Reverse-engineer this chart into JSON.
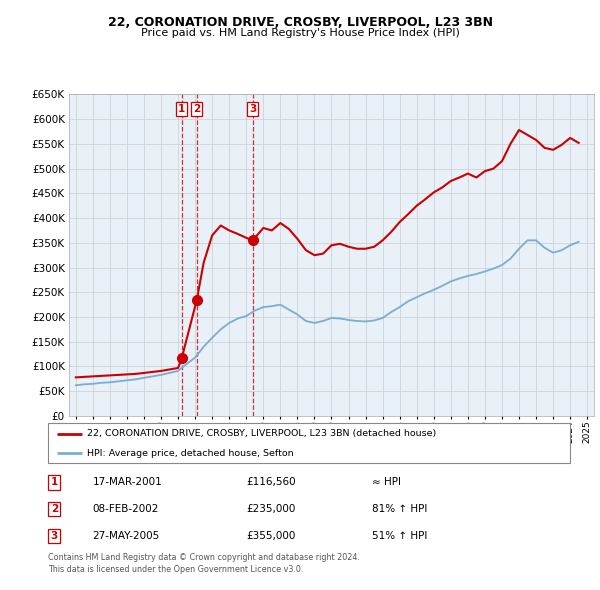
{
  "title": "22, CORONATION DRIVE, CROSBY, LIVERPOOL, L23 3BN",
  "subtitle": "Price paid vs. HM Land Registry's House Price Index (HPI)",
  "transactions": [
    {
      "num": 1,
      "date": "17-MAR-2001",
      "price": 116560,
      "year": 2001.21,
      "label": "≈ HPI"
    },
    {
      "num": 2,
      "date": "08-FEB-2002",
      "price": 235000,
      "year": 2002.1,
      "label": "81% ↑ HPI"
    },
    {
      "num": 3,
      "date": "27-MAY-2005",
      "price": 355000,
      "year": 2005.38,
      "label": "51% ↑ HPI"
    }
  ],
  "legend_line1": "22, CORONATION DRIVE, CROSBY, LIVERPOOL, L23 3BN (detached house)",
  "legend_line2": "HPI: Average price, detached house, Sefton",
  "footer1": "Contains HM Land Registry data © Crown copyright and database right 2024.",
  "footer2": "This data is licensed under the Open Government Licence v3.0.",
  "red_color": "#cc0000",
  "blue_color": "#7aadd4",
  "grid_color": "#cccccc",
  "plot_bg": "#e8f0f8",
  "ylim": [
    0,
    650000
  ],
  "yticks": [
    0,
    50000,
    100000,
    150000,
    200000,
    250000,
    300000,
    350000,
    400000,
    450000,
    500000,
    550000,
    600000,
    650000
  ],
  "hpi_years": [
    1995.0,
    1995.5,
    1996.0,
    1996.5,
    1997.0,
    1997.5,
    1998.0,
    1998.5,
    1999.0,
    1999.5,
    2000.0,
    2000.5,
    2001.0,
    2001.5,
    2002.0,
    2002.5,
    2003.0,
    2003.5,
    2004.0,
    2004.5,
    2005.0,
    2005.5,
    2006.0,
    2006.5,
    2007.0,
    2007.5,
    2008.0,
    2008.5,
    2009.0,
    2009.5,
    2010.0,
    2010.5,
    2011.0,
    2011.5,
    2012.0,
    2012.5,
    2013.0,
    2013.5,
    2014.0,
    2014.5,
    2015.0,
    2015.5,
    2016.0,
    2016.5,
    2017.0,
    2017.5,
    2018.0,
    2018.5,
    2019.0,
    2019.5,
    2020.0,
    2020.5,
    2021.0,
    2021.5,
    2022.0,
    2022.5,
    2023.0,
    2023.5,
    2024.0,
    2024.5
  ],
  "hpi_values": [
    62000,
    64000,
    65000,
    67000,
    68000,
    70000,
    72000,
    74000,
    77000,
    80000,
    83000,
    87000,
    91000,
    105000,
    118000,
    140000,
    158000,
    175000,
    188000,
    197000,
    202000,
    213000,
    220000,
    222000,
    225000,
    215000,
    205000,
    192000,
    188000,
    192000,
    198000,
    197000,
    194000,
    192000,
    191000,
    193000,
    198000,
    210000,
    220000,
    232000,
    240000,
    248000,
    255000,
    263000,
    272000,
    278000,
    283000,
    287000,
    292000,
    298000,
    305000,
    318000,
    338000,
    355000,
    355000,
    340000,
    330000,
    335000,
    345000,
    352000
  ],
  "red_years": [
    1995.0,
    1995.5,
    1996.0,
    1996.5,
    1997.0,
    1997.5,
    1998.0,
    1998.5,
    1999.0,
    1999.5,
    2000.0,
    2000.5,
    2001.0,
    2001.21,
    2002.1,
    2002.5,
    2003.0,
    2003.5,
    2004.0,
    2004.5,
    2005.0,
    2005.38,
    2006.0,
    2006.5,
    2007.0,
    2007.5,
    2008.0,
    2008.5,
    2009.0,
    2009.5,
    2010.0,
    2010.5,
    2011.0,
    2011.5,
    2012.0,
    2012.5,
    2013.0,
    2013.5,
    2014.0,
    2014.5,
    2015.0,
    2015.5,
    2016.0,
    2016.5,
    2017.0,
    2017.5,
    2018.0,
    2018.5,
    2019.0,
    2019.5,
    2020.0,
    2020.5,
    2021.0,
    2021.5,
    2022.0,
    2022.5,
    2023.0,
    2023.5,
    2024.0,
    2024.5
  ],
  "red_values": [
    78000,
    79000,
    80000,
    81000,
    82000,
    83000,
    84000,
    85000,
    87000,
    89000,
    91000,
    94000,
    97000,
    116560,
    235000,
    310000,
    365000,
    385000,
    375000,
    368000,
    360000,
    355000,
    380000,
    375000,
    390000,
    378000,
    358000,
    335000,
    325000,
    328000,
    345000,
    348000,
    342000,
    338000,
    338000,
    342000,
    355000,
    372000,
    392000,
    408000,
    425000,
    438000,
    452000,
    462000,
    475000,
    482000,
    490000,
    482000,
    495000,
    500000,
    515000,
    550000,
    578000,
    568000,
    558000,
    542000,
    538000,
    548000,
    562000,
    552000
  ]
}
